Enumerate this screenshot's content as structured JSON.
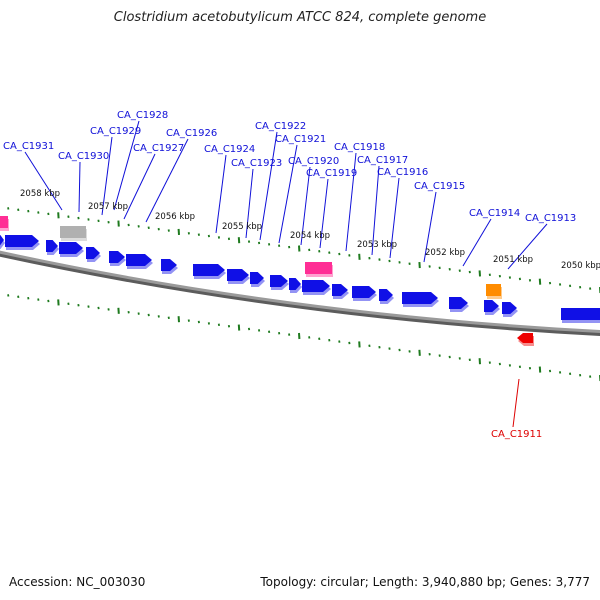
{
  "title": "Clostridium acetobutylicum ATCC 824, complete genome",
  "footer": {
    "accession": "Accession: NC_003030",
    "topology": "Topology: circular; Length: 3,940,880 bp; Genes: 3,777"
  },
  "colors": {
    "cds": "#1010e6",
    "trna": "#ff2e95",
    "rrna": "#b0b0b0",
    "other": "#ff8c00",
    "reverse_highlight": "#ee0000",
    "tick": "#1e7a1e",
    "backbone": "#808080",
    "label_forward": "#1010d8",
    "label_reverse": "#dd0000"
  },
  "scale_labels": [
    "2058 kbp",
    "2057 kbp",
    "2056 kbp",
    "2055 kbp",
    "2054 kbp",
    "2053 kbp",
    "2052 kbp",
    "2051 kbp",
    "2050 kbp"
  ],
  "gene_labels": [
    {
      "id": "CA_C1931",
      "strand": "forward"
    },
    {
      "id": "CA_C1930",
      "strand": "forward"
    },
    {
      "id": "CA_C1929",
      "strand": "forward"
    },
    {
      "id": "CA_C1928",
      "strand": "forward"
    },
    {
      "id": "CA_C1927",
      "strand": "forward"
    },
    {
      "id": "CA_C1926",
      "strand": "forward"
    },
    {
      "id": "CA_C1924",
      "strand": "forward"
    },
    {
      "id": "CA_C1923",
      "strand": "forward"
    },
    {
      "id": "CA_C1922",
      "strand": "forward"
    },
    {
      "id": "CA_C1921",
      "strand": "forward"
    },
    {
      "id": "CA_C1920",
      "strand": "forward"
    },
    {
      "id": "CA_C1919",
      "strand": "forward"
    },
    {
      "id": "CA_C1918",
      "strand": "forward"
    },
    {
      "id": "CA_C1917",
      "strand": "forward"
    },
    {
      "id": "CA_C1916",
      "strand": "forward"
    },
    {
      "id": "CA_C1915",
      "strand": "forward"
    },
    {
      "id": "CA_C1914",
      "strand": "forward"
    },
    {
      "id": "CA_C1913",
      "strand": "forward"
    },
    {
      "id": "CA_C1911",
      "strand": "reverse"
    }
  ]
}
